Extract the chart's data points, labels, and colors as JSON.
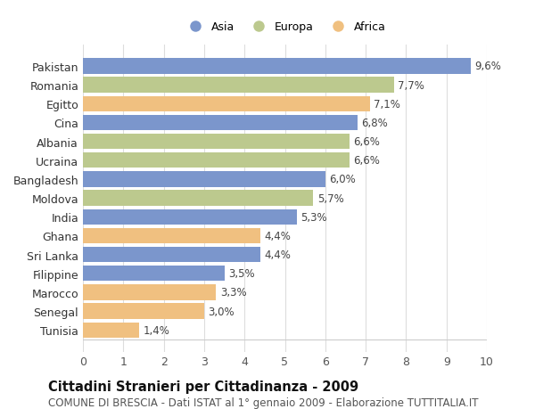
{
  "categories": [
    "Pakistan",
    "Romania",
    "Egitto",
    "Cina",
    "Albania",
    "Ucraina",
    "Bangladesh",
    "Moldova",
    "India",
    "Ghana",
    "Sri Lanka",
    "Filippine",
    "Marocco",
    "Senegal",
    "Tunisia"
  ],
  "values": [
    9.6,
    7.7,
    7.1,
    6.8,
    6.6,
    6.6,
    6.0,
    5.7,
    5.3,
    4.4,
    4.4,
    3.5,
    3.3,
    3.0,
    1.4
  ],
  "continents": [
    "Asia",
    "Europa",
    "Africa",
    "Asia",
    "Europa",
    "Europa",
    "Asia",
    "Europa",
    "Asia",
    "Africa",
    "Asia",
    "Asia",
    "Africa",
    "Africa",
    "Africa"
  ],
  "colors": {
    "Asia": "#7b96cc",
    "Europa": "#bcc98e",
    "Africa": "#f0c080"
  },
  "xlim": [
    0,
    10
  ],
  "xticks": [
    0,
    1,
    2,
    3,
    4,
    5,
    6,
    7,
    8,
    9,
    10
  ],
  "title": "Cittadini Stranieri per Cittadinanza - 2009",
  "subtitle": "COMUNE DI BRESCIA - Dati ISTAT al 1° gennaio 2009 - Elaborazione TUTTITALIA.IT",
  "background_color": "#ffffff",
  "plot_bg": "#ffffff",
  "grid_color": "#dddddd",
  "bar_height": 0.82,
  "label_fontsize": 9,
  "value_fontsize": 8.5,
  "title_fontsize": 10.5,
  "subtitle_fontsize": 8.5
}
